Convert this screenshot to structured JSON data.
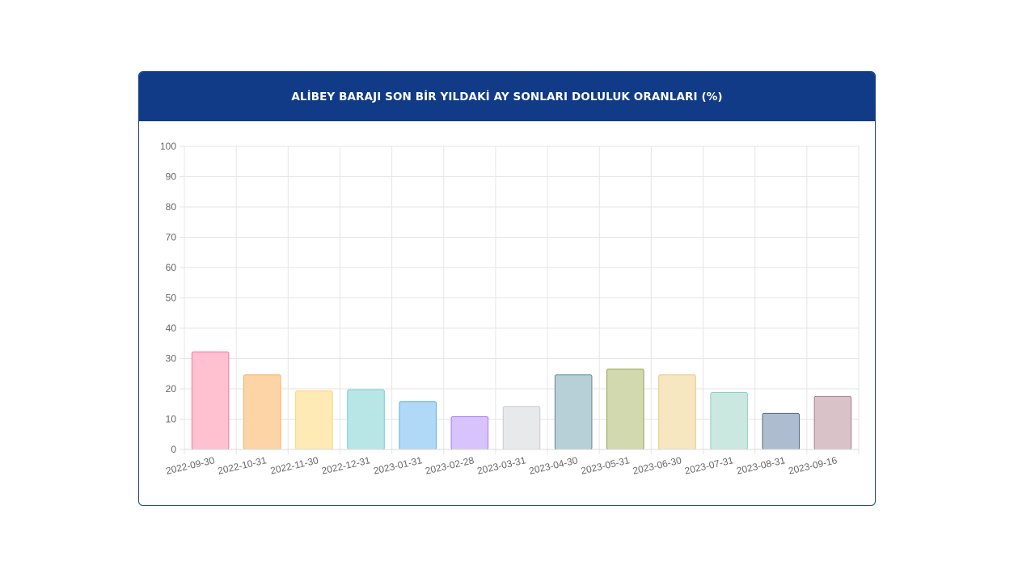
{
  "title": "ALİBEY BARAJI SON BİR YILDAKİ AY SONLARI DOLULUK ORANLARI (%)",
  "chart_data": {
    "type": "bar",
    "title": "ALİBEY BARAJI SON BİR YILDAKİ AY SONLARI DOLULUK ORANLARI (%)",
    "xlabel": "",
    "ylabel": "",
    "categories": [
      "2022-09-30",
      "2022-10-31",
      "2022-11-30",
      "2022-12-31",
      "2023-01-31",
      "2023-02-28",
      "2023-03-31",
      "2023-04-30",
      "2023-05-31",
      "2023-06-30",
      "2023-07-31",
      "2023-08-31",
      "2023-09-16"
    ],
    "values": [
      32.2,
      24.6,
      19.3,
      19.7,
      15.8,
      10.8,
      14.2,
      24.6,
      26.5,
      24.6,
      18.8,
      11.9,
      17.5
    ],
    "ylim": [
      0,
      100
    ],
    "yticks": [
      0,
      10,
      20,
      30,
      40,
      50,
      60,
      70,
      80,
      90,
      100
    ],
    "grid": true,
    "colors": {
      "fills": [
        "#ffc0cf",
        "#fdd4a6",
        "#feeab5",
        "#b8e6e6",
        "#afd9f6",
        "#d8c3fd",
        "#e8e9eb",
        "#b7cfd6",
        "#d3d9ae",
        "#f6e7c1",
        "#cbe8e0",
        "#adbccf",
        "#dac2c9"
      ],
      "borders": [
        "#ff7597",
        "#fbad5b",
        "#fdd378",
        "#6fcfcf",
        "#5fb0ea",
        "#a87bfb",
        "#c9cbce",
        "#5b8a97",
        "#93a055",
        "#e8c97d",
        "#8fd0be",
        "#4e6a8a",
        "#a9808d"
      ],
      "header": "#113b86",
      "grid": "#e6e6e6",
      "tick_text": "#666666"
    }
  }
}
